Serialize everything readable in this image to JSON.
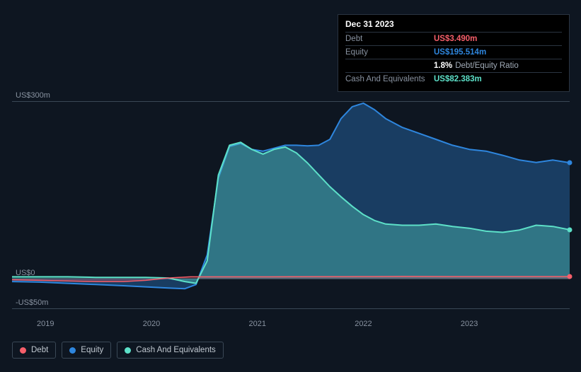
{
  "chart": {
    "type": "area",
    "background_color": "#0e1621",
    "grid_color": "#3a4856",
    "text_color": "#8892a0",
    "y_axis": {
      "ticks": [
        {
          "label": "-US$50m",
          "value": -50
        },
        {
          "label": "US$0",
          "value": 0
        },
        {
          "label": "US$300m",
          "value": 300
        }
      ],
      "min": -55,
      "max": 303
    },
    "x_axis": {
      "ticks": [
        {
          "label": "2019",
          "t": 0.06
        },
        {
          "label": "2020",
          "t": 0.25
        },
        {
          "label": "2021",
          "t": 0.44
        },
        {
          "label": "2022",
          "t": 0.63
        },
        {
          "label": "2023",
          "t": 0.82
        }
      ]
    },
    "series": {
      "debt": {
        "label": "Debt",
        "color": "#f65f6a",
        "fill_opacity": 0.25,
        "line_width": 1.5,
        "points": [
          [
            0.0,
            -2
          ],
          [
            0.05,
            -3
          ],
          [
            0.1,
            -4
          ],
          [
            0.15,
            -5
          ],
          [
            0.2,
            -5
          ],
          [
            0.24,
            -3
          ],
          [
            0.28,
            1
          ],
          [
            0.32,
            3
          ],
          [
            0.36,
            3
          ],
          [
            0.4,
            3
          ],
          [
            0.45,
            3
          ],
          [
            0.5,
            3.2
          ],
          [
            0.55,
            3.3
          ],
          [
            0.6,
            3.4
          ],
          [
            0.65,
            3.5
          ],
          [
            0.7,
            3.7
          ],
          [
            0.75,
            3.6
          ],
          [
            0.8,
            3.5
          ],
          [
            0.85,
            3.5
          ],
          [
            0.9,
            3.5
          ],
          [
            0.95,
            3.5
          ],
          [
            1.0,
            3.49
          ]
        ]
      },
      "equity": {
        "label": "Equity",
        "color": "#2e86de",
        "fill_opacity": 0.35,
        "line_width": 2,
        "points": [
          [
            0.0,
            -5
          ],
          [
            0.05,
            -6
          ],
          [
            0.1,
            -8
          ],
          [
            0.15,
            -10
          ],
          [
            0.2,
            -12
          ],
          [
            0.24,
            -14
          ],
          [
            0.28,
            -16
          ],
          [
            0.31,
            -17
          ],
          [
            0.33,
            -10
          ],
          [
            0.35,
            40
          ],
          [
            0.37,
            170
          ],
          [
            0.39,
            223
          ],
          [
            0.41,
            228
          ],
          [
            0.43,
            218
          ],
          [
            0.45,
            215
          ],
          [
            0.47,
            220
          ],
          [
            0.49,
            225
          ],
          [
            0.51,
            225
          ],
          [
            0.53,
            224
          ],
          [
            0.55,
            225
          ],
          [
            0.57,
            235
          ],
          [
            0.59,
            270
          ],
          [
            0.61,
            290
          ],
          [
            0.63,
            296
          ],
          [
            0.65,
            285
          ],
          [
            0.67,
            270
          ],
          [
            0.7,
            255
          ],
          [
            0.73,
            245
          ],
          [
            0.76,
            235
          ],
          [
            0.79,
            225
          ],
          [
            0.82,
            218
          ],
          [
            0.85,
            215
          ],
          [
            0.88,
            208
          ],
          [
            0.91,
            200
          ],
          [
            0.94,
            196
          ],
          [
            0.97,
            200
          ],
          [
            1.0,
            195.5
          ]
        ]
      },
      "cash": {
        "label": "Cash And Equivalents",
        "color": "#5de0c8",
        "fill_opacity": 0.35,
        "line_width": 2,
        "points": [
          [
            0.0,
            3
          ],
          [
            0.05,
            3
          ],
          [
            0.1,
            3
          ],
          [
            0.15,
            2
          ],
          [
            0.2,
            2
          ],
          [
            0.24,
            2
          ],
          [
            0.28,
            1
          ],
          [
            0.31,
            -5
          ],
          [
            0.33,
            -8
          ],
          [
            0.35,
            30
          ],
          [
            0.37,
            175
          ],
          [
            0.39,
            225
          ],
          [
            0.41,
            230
          ],
          [
            0.43,
            218
          ],
          [
            0.45,
            210
          ],
          [
            0.47,
            218
          ],
          [
            0.49,
            222
          ],
          [
            0.51,
            212
          ],
          [
            0.53,
            195
          ],
          [
            0.55,
            175
          ],
          [
            0.57,
            155
          ],
          [
            0.59,
            138
          ],
          [
            0.61,
            122
          ],
          [
            0.63,
            108
          ],
          [
            0.65,
            98
          ],
          [
            0.67,
            92
          ],
          [
            0.7,
            90
          ],
          [
            0.73,
            90
          ],
          [
            0.76,
            92
          ],
          [
            0.79,
            88
          ],
          [
            0.82,
            85
          ],
          [
            0.85,
            80
          ],
          [
            0.88,
            78
          ],
          [
            0.91,
            82
          ],
          [
            0.94,
            90
          ],
          [
            0.97,
            88
          ],
          [
            1.0,
            82.38
          ]
        ]
      }
    },
    "legend": [
      {
        "key": "debt",
        "label": "Debt",
        "color": "#f65f6a"
      },
      {
        "key": "equity",
        "label": "Equity",
        "color": "#2e86de"
      },
      {
        "key": "cash",
        "label": "Cash And Equivalents",
        "color": "#5de0c8"
      }
    ],
    "marker_x": 1.0
  },
  "tooltip": {
    "date": "Dec 31 2023",
    "rows": [
      {
        "label": "Debt",
        "value": "US$3.490m",
        "color": "#f65f6a"
      },
      {
        "label": "Equity",
        "value": "US$195.514m",
        "color": "#2e86de"
      },
      {
        "label": "",
        "ratio_value": "1.8%",
        "ratio_label": "Debt/Equity Ratio"
      },
      {
        "label": "Cash And Equivalents",
        "value": "US$82.383m",
        "color": "#5de0c8"
      }
    ]
  }
}
